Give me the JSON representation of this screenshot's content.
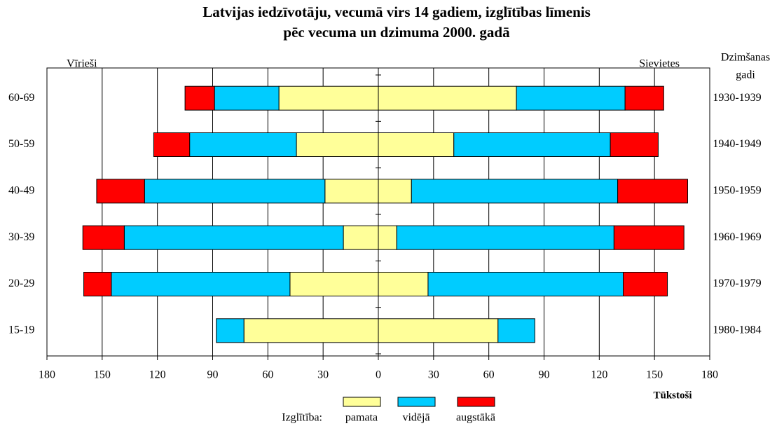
{
  "chart_data": {
    "type": "pyramid",
    "title": [
      "Latvijas iedzīvotāju, vecumā virs 14 gadiem, izglītības līmenis",
      "pēc vecuma un dzimuma 2000. gadā"
    ],
    "left_label": "Vīrieši",
    "right_label": "Sievietes",
    "right_axis_title": [
      "Dzimšanas",
      "gadi"
    ],
    "x_label": "Tūkstoši",
    "legend_title": "Izglītība:",
    "categories": [
      "60-69",
      "50-59",
      "40-49",
      "30-39",
      "20-29",
      "15-19"
    ],
    "right_categories": [
      "1930-1939",
      "1940-1949",
      "1950-1959",
      "1960-1969",
      "1970-1979",
      "1980-1984"
    ],
    "series": [
      {
        "name": "pamata",
        "color": "#ffff99",
        "men": [
          -54,
          -44.5,
          -29,
          -19,
          -48,
          -73
        ],
        "women": [
          75,
          41,
          18,
          10,
          27,
          65
        ]
      },
      {
        "name": "vidējā",
        "color": "#00ccff",
        "men": [
          -35,
          -58,
          -98,
          -119,
          -97,
          -15
        ],
        "women": [
          59,
          85,
          112,
          118,
          106,
          20
        ]
      },
      {
        "name": "augstākā",
        "color": "#ff0000",
        "men": [
          -16,
          -19.5,
          -26,
          -22.5,
          -15,
          0
        ],
        "women": [
          21,
          26,
          38,
          38,
          24,
          0
        ]
      }
    ],
    "xlim": [
      -180,
      180
    ],
    "xticks": [
      {
        "value": -180,
        "label": "180"
      },
      {
        "value": -150,
        "label": "150"
      },
      {
        "value": -120,
        "label": "120"
      },
      {
        "value": -90,
        "label": "90"
      },
      {
        "value": -60,
        "label": "60"
      },
      {
        "value": -30,
        "label": "30"
      },
      0,
      30,
      60,
      90,
      120,
      150,
      180
    ],
    "grid": true
  }
}
